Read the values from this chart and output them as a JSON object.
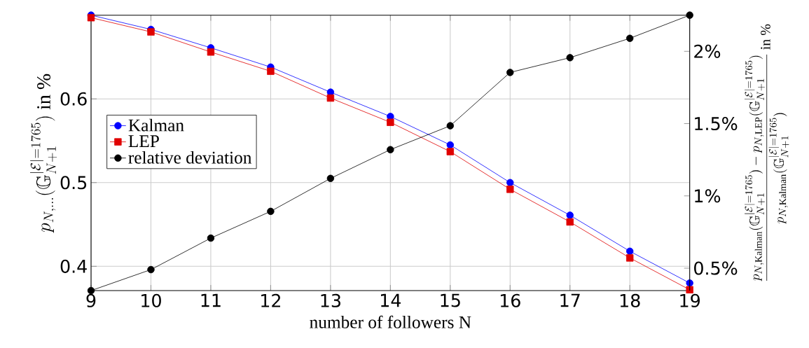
{
  "chart_data": {
    "type": "line",
    "xlabel": "number of followers N",
    "ylabel": "p_{N,\\dots}(\\mathbb{G}_{N+1}^{|\\mathcal{E}|=1765})\\text{ in }\\%",
    "y2label": "\\frac{p_{N,\\mathrm{Kalman}}(\\mathbb{G}_{N+1}^{|\\mathcal{E}|=1765})-p_{N,\\mathrm{LEP}}(\\mathbb{G}_{N+1}^{|\\mathcal{E}|=1765})}{p_{N,\\mathrm{Kalman}}(\\mathbb{G}_{N+1}^{|\\mathcal{E}|=1765})}\\text{ in }\\%",
    "x": [
      9,
      10,
      11,
      12,
      13,
      14,
      15,
      16,
      17,
      18,
      19
    ],
    "xlim": [
      9,
      19
    ],
    "xticks": [
      9,
      10,
      11,
      12,
      13,
      14,
      15,
      16,
      17,
      18,
      19
    ],
    "ylim": [
      0.371,
      0.7
    ],
    "yticks": [
      0.4,
      0.5,
      0.6
    ],
    "y2lim": [
      0.345,
      2.25
    ],
    "y2ticks": [
      {
        "value": 0.5,
        "label": "0.5%"
      },
      {
        "value": 1,
        "label": "1%"
      },
      {
        "value": 1.5,
        "label": "1.5%"
      },
      {
        "value": 2,
        "label": "2%"
      }
    ],
    "series": [
      {
        "name": "Kalman",
        "color": "#0000ff",
        "marker": "circle",
        "values": [
          0.7,
          0.683,
          0.661,
          0.638,
          0.608,
          0.579,
          0.545,
          0.5,
          0.461,
          0.418,
          0.38
        ]
      },
      {
        "name": "LEP",
        "color": "#e00000",
        "marker": "square",
        "values": [
          0.697,
          0.68,
          0.656,
          0.633,
          0.601,
          0.572,
          0.537,
          0.492,
          0.453,
          0.41,
          0.372
        ]
      },
      {
        "name": "relative deviation",
        "color": "#000000",
        "marker": "circle",
        "axis": "y2",
        "values": [
          0.345,
          0.49,
          0.708,
          0.893,
          1.121,
          1.32,
          1.485,
          1.854,
          1.956,
          2.09,
          2.25
        ]
      }
    ],
    "grid": true,
    "legend": "left",
    "line_style": "solid"
  }
}
